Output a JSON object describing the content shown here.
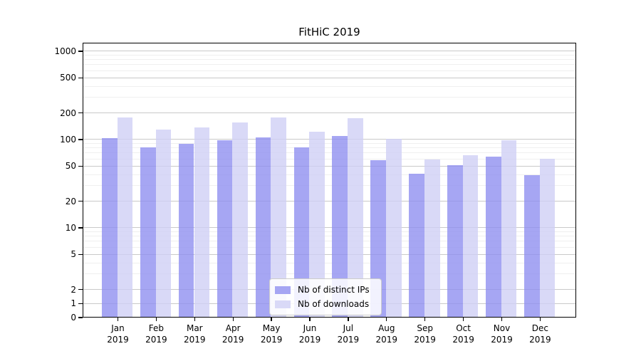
{
  "title": "FitHiC 2019",
  "colors": {
    "ips_bar": "rgba(144,144,240,0.8)",
    "downloads_bar": "rgba(208,208,245,0.8)",
    "ips_swatch": "#a6a6f3",
    "downloads_swatch": "#d9d9f7",
    "grid_major": "#c9c9c9",
    "grid_minor": "#efefef",
    "axis": "#000000"
  },
  "chart_data": {
    "type": "bar",
    "title": "FitHiC 2019",
    "xlabel": "",
    "ylabel": "",
    "yscale": "symlog",
    "grid": true,
    "legend_position": "lower center",
    "categories": [
      "Jan 2019",
      "Feb 2019",
      "Mar 2019",
      "Apr 2019",
      "May 2019",
      "Jun 2019",
      "Jul 2019",
      "Aug 2019",
      "Sep 2019",
      "Oct 2019",
      "Nov 2019",
      "Dec 2019"
    ],
    "series": [
      {
        "name": "Nb of distinct IPs",
        "values": [
          102,
          80,
          88,
          96,
          104,
          80,
          107,
          57,
          40,
          50,
          63,
          39
        ]
      },
      {
        "name": "Nb of downloads",
        "values": [
          174,
          128,
          134,
          154,
          176,
          120,
          171,
          100,
          58,
          65,
          96,
          60
        ]
      }
    ],
    "yticks": [
      0,
      1,
      2,
      5,
      10,
      20,
      50,
      100,
      200,
      500,
      1000
    ],
    "ylim": [
      0,
      1250
    ]
  }
}
